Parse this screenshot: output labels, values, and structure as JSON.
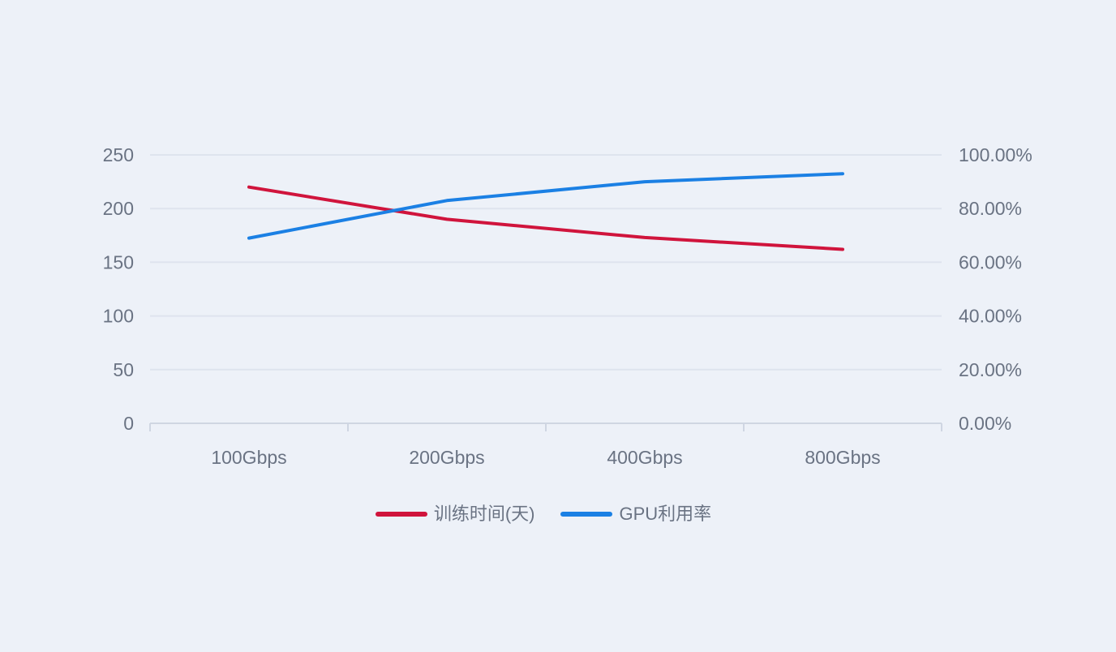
{
  "chart": {
    "background_color": "#edf1f8",
    "gridline_color": "#dee4ee",
    "axisline_color": "#cfd6e2",
    "label_color": "#6a7383"
  },
  "chart_data": {
    "type": "line",
    "title": "",
    "categories": [
      "100Gbps",
      "200Gbps",
      "400Gbps",
      "800Gbps"
    ],
    "series": [
      {
        "id": "training-time-days",
        "name": "训练时间(天)",
        "axis": "left",
        "color": "#d0143c",
        "values": [
          220,
          190,
          173,
          162
        ]
      },
      {
        "id": "gpu-utilization",
        "name": "GPU利用率",
        "axis": "right",
        "color": "#1b80e4",
        "values": [
          69,
          83,
          90,
          93
        ],
        "unit": "%"
      }
    ],
    "left_axis": {
      "range": [
        0,
        250
      ],
      "tick_labels": [
        "0",
        "50",
        "100",
        "150",
        "200",
        "250"
      ]
    },
    "right_axis": {
      "range": [
        0,
        100
      ],
      "tick_labels": [
        "0.00%",
        "20.00%",
        "40.00%",
        "60.00%",
        "80.00%",
        "100.00%"
      ]
    },
    "grid": true,
    "legend_position": "bottom"
  },
  "legend": {
    "items": [
      {
        "id": "training-time-days",
        "label": "训练时间(天)",
        "color": "#d0143c"
      },
      {
        "id": "gpu-utilization",
        "label": "GPU利用率",
        "color": "#1b80e4"
      }
    ]
  }
}
